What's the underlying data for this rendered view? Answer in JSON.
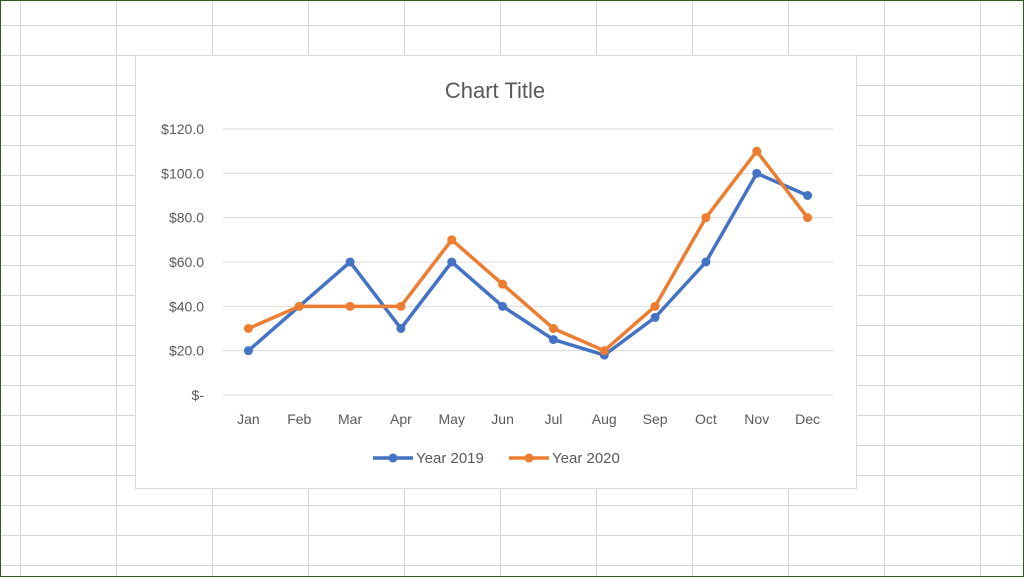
{
  "chart_data": {
    "type": "line",
    "title": "Chart Title",
    "categories": [
      "Jan",
      "Feb",
      "Mar",
      "Apr",
      "May",
      "Jun",
      "Jul",
      "Aug",
      "Sep",
      "Oct",
      "Nov",
      "Dec"
    ],
    "series": [
      {
        "name": "Year 2019",
        "color": "#4472c4",
        "values": [
          20,
          40,
          60,
          30,
          60,
          40,
          25,
          18,
          35,
          60,
          100,
          90
        ]
      },
      {
        "name": "Year 2020",
        "color": "#ed7d31",
        "values": [
          30,
          40,
          40,
          40,
          70,
          50,
          30,
          20,
          40,
          80,
          110,
          80
        ]
      }
    ],
    "y_ticks": [
      "$-",
      "$20.0",
      "$40.0",
      "$60.0",
      "$80.0",
      "$100.0",
      "$120.0"
    ],
    "ylim": [
      0,
      120
    ],
    "grid": true,
    "legend_position": "bottom"
  }
}
